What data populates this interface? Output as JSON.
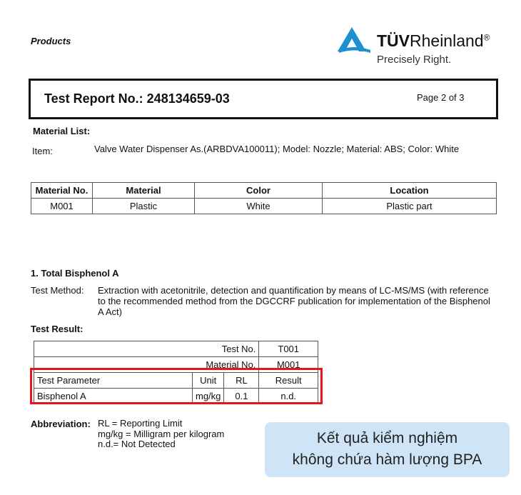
{
  "header": {
    "section": "Products",
    "brand": "TÜVRheinland",
    "brand_bold": "TÜV",
    "brand_rest": "Rheinland",
    "registered": "®",
    "tagline": "Precisely Right.",
    "brand_color": "#1e8fd0"
  },
  "report": {
    "title": "Test Report No.: 248134659-03",
    "page": "Page 2 of 3"
  },
  "material_list": {
    "heading": "Material List:",
    "item_label": "Item:",
    "item_value": "Valve Water Dispenser As.(ARBDVA100011); Model: Nozzle; Material: ABS; Color: White",
    "columns": [
      "Material No.",
      "Material",
      "Color",
      "Location"
    ],
    "rows": [
      [
        "M001",
        "Plastic",
        "White",
        "Plastic part"
      ]
    ]
  },
  "section1": {
    "heading": "1. Total Bisphenol A",
    "method_label": "Test Method:",
    "method_lines": [
      "Extraction with acetonitrile, detection and quantification by means of LC-MS/MS (with reference",
      "to the recommended method from the DGCCRF publication for implementation of the Bisphenol",
      "A Act)"
    ],
    "result_heading": "Test Result:",
    "test_no_label": "Test No.",
    "test_no": "T001",
    "material_no_label": "Material No.",
    "material_no": "M001",
    "columns": [
      "Test Parameter",
      "Unit",
      "RL",
      "Result"
    ],
    "rows": [
      [
        "Bisphenol A",
        "mg/kg",
        "0.1",
        "n.d."
      ]
    ],
    "highlight_color": "#e8141b"
  },
  "abbreviation": {
    "label": "Abbreviation:",
    "lines": [
      "RL = Reporting Limit",
      "mg/kg = Milligram per kilogram",
      "n.d.= Not Detected"
    ]
  },
  "callout": {
    "lines": [
      "Kết quả kiểm nghiệm",
      "không chứa hàm lượng BPA"
    ],
    "background": "#cfe5f7"
  }
}
